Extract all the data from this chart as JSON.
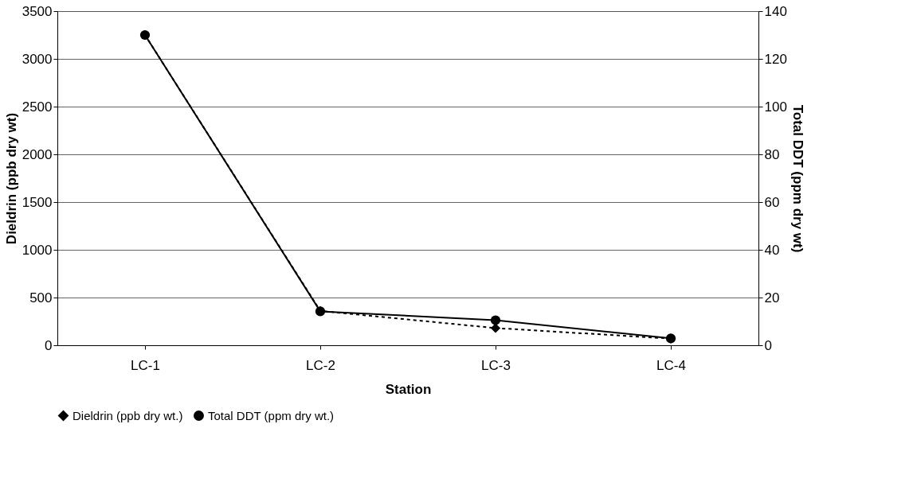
{
  "chart_data": {
    "type": "line",
    "xlabel": "Station",
    "ylabel": "Dieldrin (ppb dry wt)",
    "y2label": "Total DDT (ppm dry wt)",
    "categories": [
      "LC-1",
      "LC-2",
      "LC-3",
      "LC-4"
    ],
    "series": [
      {
        "name": "Dieldrin (ppb dry wt.)",
        "color": "#000000",
        "values": [
          3250,
          360,
          180,
          70
        ],
        "marker": "diamond",
        "line_style": "dashed"
      },
      {
        "name": "Total DDT (ppm dry wt.)",
        "color": "#000000",
        "values": [
          130,
          14.2,
          10.5,
          2.9
        ],
        "marker": "circle",
        "line_style": "solid",
        "axis": "y2"
      }
    ],
    "ylim": [
      0,
      3500
    ],
    "yticks": [
      0,
      500,
      1000,
      1500,
      2000,
      2500,
      3000,
      3500
    ],
    "y2lim": [
      0,
      140
    ],
    "y2ticks": [
      0,
      20,
      40,
      60,
      80,
      100,
      120,
      140
    ],
    "grid": "y",
    "legend": "bottom"
  }
}
